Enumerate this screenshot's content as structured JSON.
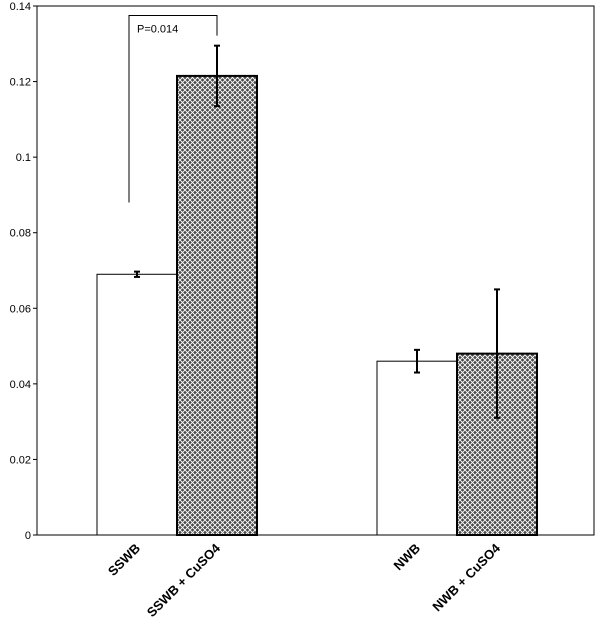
{
  "chart_data": {
    "type": "bar",
    "title": "",
    "xlabel": "",
    "ylabel": "",
    "ylim": [
      0,
      0.14
    ],
    "yticks": [
      0,
      0.02,
      0.04,
      0.06,
      0.08,
      0.1,
      0.12,
      0.14
    ],
    "ytick_labels": [
      "0",
      "0.02",
      "0.04",
      "0.06",
      "0.08",
      "0.1",
      "0.12",
      "0.14"
    ],
    "grid": false,
    "legend": "none",
    "categories": [
      "SSWB",
      "SSWB + CuSO4",
      "NWB",
      "NWB + CuSO4"
    ],
    "values": [
      0.069,
      0.1215,
      0.046,
      0.048
    ],
    "errors": [
      0.0007,
      0.008,
      0.003,
      0.017
    ],
    "fills": [
      "plain",
      "crosshatch",
      "plain",
      "crosshatch"
    ],
    "colors": {
      "plain": "#ffffff",
      "hatch_bg": "#4a4a4a",
      "hatch_line": "#ffffff",
      "edge": "#000000"
    },
    "annotation": {
      "text": "P=0.014",
      "between": [
        0,
        1
      ],
      "left_base": 0.088,
      "bracket_top": 0.1375
    }
  }
}
